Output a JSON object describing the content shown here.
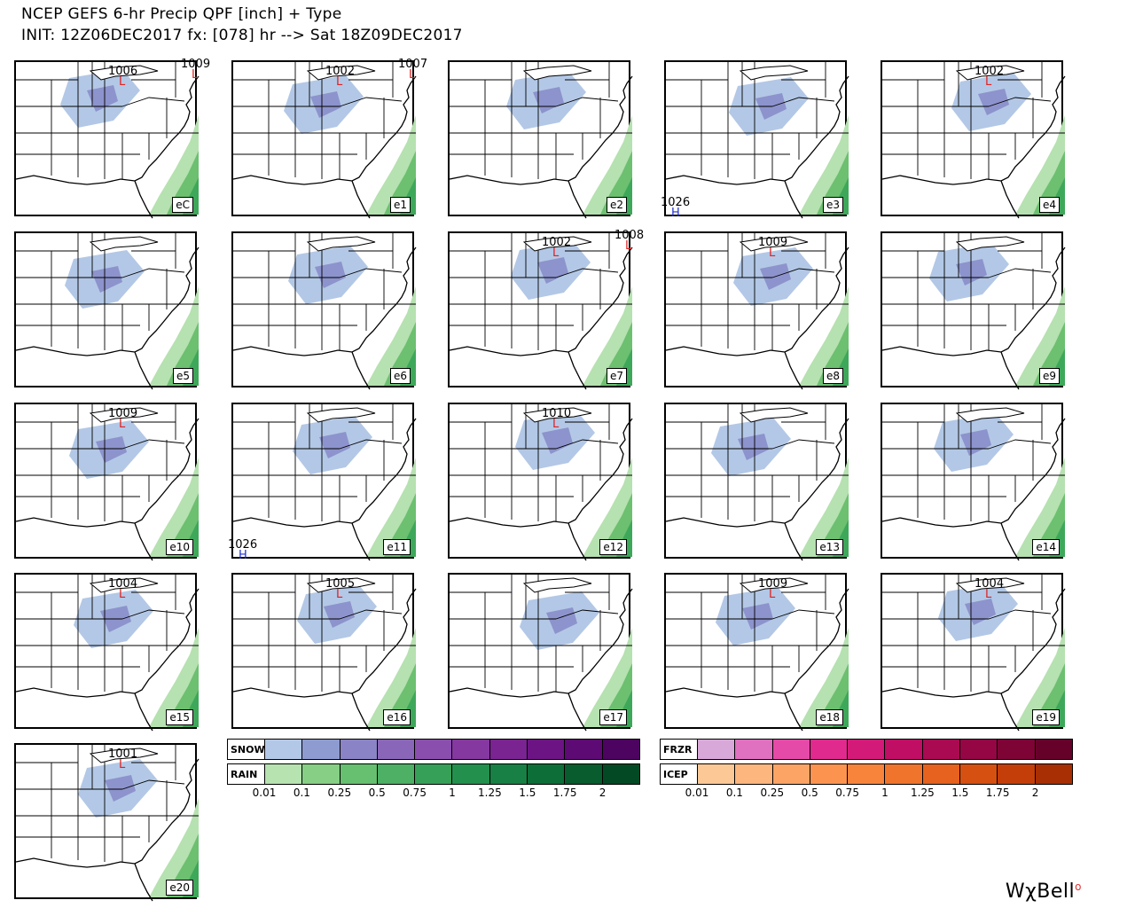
{
  "header": {
    "line1": "NCEP GEFS 6-hr Precip QPF [inch] + Type",
    "line2": "INIT: 12Z06DEC2017 fx: [078] hr --> Sat 18Z09DEC2017"
  },
  "colors": {
    "snow_light": "#b3c8e6",
    "snow_mid": "#8d93cc",
    "rain_light": "#b6e1b0",
    "rain_mid": "#6cc070",
    "rain_dark": "#3ea85a",
    "low_marker": "#e02020",
    "high_marker": "#2030d0"
  },
  "panels": [
    {
      "label": "eC",
      "pressures": [
        {
          "type": "L",
          "value": "1006"
        },
        {
          "type": "L",
          "value": "1009"
        }
      ]
    },
    {
      "label": "e1",
      "pressures": [
        {
          "type": "L",
          "value": "1002"
        },
        {
          "type": "L",
          "value": "1007"
        }
      ]
    },
    {
      "label": "e2",
      "pressures": []
    },
    {
      "label": "e3",
      "pressures": [
        {
          "type": "H",
          "value": "1026"
        }
      ]
    },
    {
      "label": "e4",
      "pressures": [
        {
          "type": "L",
          "value": "1002"
        }
      ]
    },
    {
      "label": "e5",
      "pressures": []
    },
    {
      "label": "e6",
      "pressures": []
    },
    {
      "label": "e7",
      "pressures": [
        {
          "type": "L",
          "value": "1002"
        },
        {
          "type": "L",
          "value": "1008"
        }
      ]
    },
    {
      "label": "e8",
      "pressures": [
        {
          "type": "L",
          "value": "1009"
        }
      ]
    },
    {
      "label": "e9",
      "pressures": []
    },
    {
      "label": "e10",
      "pressures": [
        {
          "type": "L",
          "value": "1009"
        }
      ]
    },
    {
      "label": "e11",
      "pressures": [
        {
          "type": "H",
          "value": "1026"
        }
      ]
    },
    {
      "label": "e12",
      "pressures": [
        {
          "type": "L",
          "value": "1010"
        }
      ]
    },
    {
      "label": "e13",
      "pressures": []
    },
    {
      "label": "e14",
      "pressures": []
    },
    {
      "label": "e15",
      "pressures": [
        {
          "type": "L",
          "value": "1004"
        }
      ]
    },
    {
      "label": "e16",
      "pressures": [
        {
          "type": "L",
          "value": "1005"
        }
      ]
    },
    {
      "label": "e17",
      "pressures": []
    },
    {
      "label": "e18",
      "pressures": [
        {
          "type": "L",
          "value": "1009"
        }
      ]
    },
    {
      "label": "e19",
      "pressures": [
        {
          "type": "L",
          "value": "1004"
        }
      ]
    },
    {
      "label": "e20",
      "pressures": [
        {
          "type": "L",
          "value": "1001"
        }
      ]
    }
  ],
  "legend": {
    "snow": {
      "label": "SNOW",
      "colors": [
        "#b3c8e6",
        "#8d9bd0",
        "#8a84c6",
        "#8a66b8",
        "#8a4fae",
        "#85389f",
        "#7a2491",
        "#6c1483",
        "#5e0a74",
        "#4c0460"
      ]
    },
    "rain": {
      "label": "RAIN",
      "colors": [
        "#b6e3b0",
        "#86cf84",
        "#66c070",
        "#4db064",
        "#36a058",
        "#23904e",
        "#188044",
        "#0e6e38",
        "#085c2e",
        "#034924"
      ]
    },
    "frzr": {
      "label": "FRZR",
      "colors": [
        "#d8a8d8",
        "#e070c0",
        "#e64aa8",
        "#e02a8e",
        "#d41a78",
        "#c00e64",
        "#aa0a52",
        "#940644",
        "#7e0436",
        "#66022a"
      ]
    },
    "icep": {
      "label": "ICEP",
      "colors": [
        "#fcc896",
        "#fcb67e",
        "#fca466",
        "#fc9450",
        "#f8843c",
        "#f0742c",
        "#e6621e",
        "#d65012",
        "#c43e0a",
        "#a82e04"
      ]
    },
    "ticks": [
      "0.01",
      "0.1",
      "0.25",
      "0.5",
      "0.75",
      "1",
      "1.25",
      "1.5",
      "1.75",
      "2"
    ]
  },
  "brand": {
    "name": "WχBell"
  }
}
